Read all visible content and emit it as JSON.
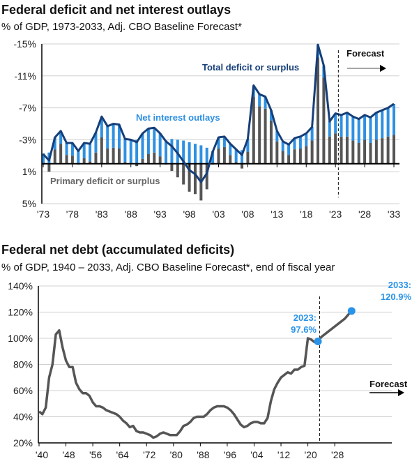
{
  "colors": {
    "line": "#163f78",
    "interest": "#2e90e2",
    "primary": "#555555",
    "debt": "#555555",
    "dot": "#2a93e8",
    "grid": "#d0d0d0"
  },
  "chart_data": [
    {
      "type": "bar",
      "title": "Federal deficit and net interest outlays",
      "subtitle": "% of GDP, 1973-2033, Adj. CBO Baseline Forecast*",
      "ylim": [
        -15,
        5
      ],
      "yticks": [
        -15,
        -11,
        -7,
        -3,
        1,
        5
      ],
      "ytick_labels": [
        "-15%",
        "-11%",
        "-7%",
        "-3%",
        "1%",
        "5%"
      ],
      "xtick_labels": [
        "'73",
        "'78",
        "'83",
        "'88",
        "'93",
        "'98",
        "'03",
        "'08",
        "'13",
        "'18",
        "'23",
        "'28",
        "'33"
      ],
      "x_start": 1973,
      "forecast_from": 2023,
      "forecast_label": "Forecast",
      "annotations": {
        "total": "Total deficit or surplus",
        "interest": "Net interest outlays",
        "primary": "Primary deficit or surplus"
      },
      "series": [
        {
          "name": "Total deficit or surplus",
          "values": [
            -1.2,
            -0.4,
            -3.3,
            -4.1,
            -2.6,
            -2.6,
            -1.6,
            -2.6,
            -2.5,
            -3.9,
            -5.9,
            -4.7,
            -5.0,
            -4.9,
            -3.1,
            -3.0,
            -2.7,
            -3.8,
            -4.4,
            -4.5,
            -3.8,
            -2.8,
            -2.2,
            -1.3,
            -0.3,
            0.8,
            1.3,
            2.3,
            1.2,
            -1.5,
            -3.3,
            -3.4,
            -2.5,
            -1.8,
            -1.1,
            -3.1,
            -9.8,
            -8.7,
            -8.4,
            -6.7,
            -4.1,
            -2.8,
            -2.4,
            -3.2,
            -3.4,
            -3.8,
            -4.6,
            -14.9,
            -12.3,
            -5.3,
            -6.3,
            -6.1,
            -6.4,
            -5.9,
            -5.6,
            -6.1,
            -5.8,
            -6.4,
            -6.7,
            -7.0,
            -7.5
          ]
        },
        {
          "name": "Net interest outlays",
          "values": [
            1.3,
            1.4,
            1.5,
            1.6,
            1.5,
            1.6,
            1.7,
            1.9,
            2.2,
            2.5,
            2.6,
            2.8,
            3.0,
            3.0,
            2.9,
            3.0,
            3.0,
            3.2,
            3.2,
            3.1,
            2.9,
            2.9,
            3.1,
            3.0,
            2.9,
            2.7,
            2.5,
            2.3,
            2.0,
            1.6,
            1.4,
            1.3,
            1.4,
            1.6,
            1.7,
            1.6,
            1.4,
            1.5,
            1.5,
            1.3,
            1.3,
            1.2,
            1.3,
            1.4,
            1.5,
            1.6,
            1.7,
            1.6,
            1.5,
            1.9,
            2.5,
            2.7,
            3.0,
            3.0,
            3.0,
            3.1,
            3.2,
            3.4,
            3.5,
            3.6,
            3.9
          ]
        }
      ]
    },
    {
      "type": "line",
      "title": "Federal net debt (accumulated deficits)",
      "subtitle": "% of GDP, 1940 – 2033, Adj. CBO Baseline Forecast*, end of fiscal year",
      "ylim": [
        20,
        140
      ],
      "yticks": [
        20,
        40,
        60,
        80,
        100,
        120,
        140
      ],
      "ytick_labels": [
        "20%",
        "40%",
        "60%",
        "80%",
        "100%",
        "120%",
        "140%"
      ],
      "xtick_labels": [
        "'40",
        "'48",
        "'56",
        "'64",
        "'72",
        "'80",
        "'88",
        "'96",
        "'04",
        "'12",
        "'20",
        "'28"
      ],
      "x_start": 1940,
      "forecast_from": 2023,
      "forecast_label": "Forecast",
      "labels": {
        "a_year": "2023:",
        "a_val": "97.6%",
        "b_year": "2033:",
        "b_val": "120.9%"
      },
      "values": [
        44,
        42,
        47,
        70,
        80,
        103,
        106,
        93,
        83,
        78,
        78,
        66,
        61,
        58,
        58,
        56,
        51,
        48,
        48,
        47,
        45,
        44,
        43,
        42,
        40,
        37,
        35,
        32,
        33,
        29,
        28,
        28,
        27,
        26,
        24,
        25,
        27,
        28,
        27,
        26,
        26,
        26,
        29,
        33,
        34,
        36,
        39,
        40,
        40,
        40,
        42,
        45,
        47,
        48,
        48,
        48,
        47,
        45,
        42,
        38,
        34,
        32,
        33,
        35,
        36,
        36,
        35,
        35,
        39,
        52,
        61,
        66,
        70,
        72,
        74,
        73,
        76,
        76,
        78,
        79,
        100,
        99,
        97,
        97.6,
        101,
        103,
        105,
        107,
        109,
        111,
        113,
        115,
        118,
        120.9
      ]
    }
  ]
}
